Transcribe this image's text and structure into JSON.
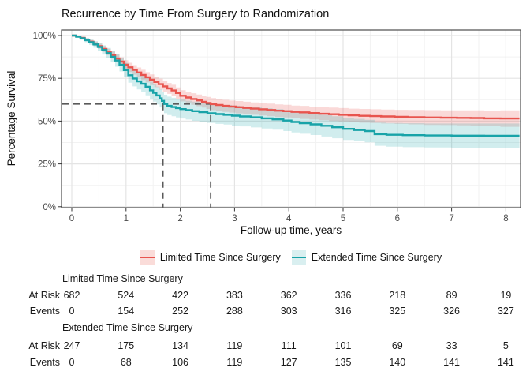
{
  "title": "Recurrence by Time From Surgery to Randomization",
  "axes": {
    "x": {
      "label": "Follow-up time, years",
      "ticks": [
        0,
        1,
        2,
        3,
        4,
        5,
        6,
        7,
        8
      ]
    },
    "y": {
      "label": "Percentage Survival",
      "ticks": [
        100,
        75,
        50,
        25,
        0
      ],
      "tick_suffix": "%"
    }
  },
  "colors": {
    "limited_line": "#E8544E",
    "limited_band": "rgba(232,84,78,0.22)",
    "limited_key_fill": "#FADCD9",
    "extended_line": "#18A3A8",
    "extended_band": "rgba(24,163,168,0.20)",
    "extended_key_fill": "#D9EFF0",
    "grid_major": "#e4e4e4",
    "grid_minor": "#f2f2f2",
    "panel_border": "#4d4d4d",
    "reference_dash": "#5a5a5a",
    "tick_text": "#4a4a4a"
  },
  "chart_data": {
    "type": "line",
    "subtype": "kaplan-meier-step-with-ci",
    "title": "Recurrence by Time From Surgery to Randomization",
    "xlabel": "Follow-up time, years",
    "ylabel": "Percentage Survival",
    "xlim": [
      -0.19,
      8.27
    ],
    "ylim": [
      0,
      100
    ],
    "x_ticks": [
      0,
      1,
      2,
      3,
      4,
      5,
      6,
      7,
      8
    ],
    "y_ticks_pct": [
      0,
      25,
      50,
      75,
      100
    ],
    "grid": true,
    "legend_position": "bottom",
    "reference_lines": {
      "horizontal_pct": 60,
      "vertical_years": [
        1.68,
        2.56
      ]
    },
    "series": [
      {
        "name": "Limited Time Since Surgery",
        "median_years": 2.56,
        "points_t_pct_ci": [
          [
            0,
            100,
            0.2
          ],
          [
            0.08,
            99.4,
            0.4
          ],
          [
            0.16,
            98.6,
            0.6
          ],
          [
            0.24,
            97.6,
            0.8
          ],
          [
            0.32,
            96.4,
            1.0
          ],
          [
            0.4,
            95.2,
            1.2
          ],
          [
            0.48,
            93.8,
            1.5
          ],
          [
            0.56,
            92.2,
            1.7
          ],
          [
            0.64,
            90.4,
            1.9
          ],
          [
            0.72,
            88.6,
            2.1
          ],
          [
            0.8,
            86.6,
            2.3
          ],
          [
            0.88,
            84.8,
            2.5
          ],
          [
            0.96,
            83.0,
            2.6
          ],
          [
            1.04,
            81.4,
            2.7
          ],
          [
            1.12,
            79.9,
            2.8
          ],
          [
            1.2,
            78.4,
            2.9
          ],
          [
            1.28,
            77.0,
            3.0
          ],
          [
            1.36,
            75.6,
            3.0
          ],
          [
            1.44,
            74.2,
            3.1
          ],
          [
            1.52,
            72.9,
            3.1
          ],
          [
            1.6,
            71.6,
            3.2
          ],
          [
            1.68,
            70.3,
            3.2
          ],
          [
            1.76,
            69.1,
            3.2
          ],
          [
            1.84,
            67.9,
            3.3
          ],
          [
            1.92,
            66.4,
            3.3
          ],
          [
            2.0,
            64.8,
            3.3
          ],
          [
            2.1,
            63.8,
            3.4
          ],
          [
            2.2,
            62.9,
            3.4
          ],
          [
            2.3,
            62.1,
            3.4
          ],
          [
            2.4,
            61.3,
            3.4
          ],
          [
            2.48,
            60.6,
            3.5
          ],
          [
            2.56,
            59.9,
            3.5
          ],
          [
            2.66,
            59.4,
            3.5
          ],
          [
            2.78,
            58.9,
            3.5
          ],
          [
            2.9,
            58.5,
            3.5
          ],
          [
            3.02,
            58.1,
            3.6
          ],
          [
            3.16,
            57.7,
            3.6
          ],
          [
            3.3,
            57.3,
            3.6
          ],
          [
            3.45,
            56.9,
            3.6
          ],
          [
            3.6,
            56.5,
            3.7
          ],
          [
            3.75,
            56.1,
            3.7
          ],
          [
            3.9,
            55.8,
            3.7
          ],
          [
            4.05,
            55.4,
            3.7
          ],
          [
            4.2,
            55.1,
            3.8
          ],
          [
            4.38,
            54.7,
            3.8
          ],
          [
            4.56,
            54.3,
            3.8
          ],
          [
            4.74,
            54.0,
            3.9
          ],
          [
            4.92,
            53.7,
            3.9
          ],
          [
            5.1,
            53.4,
            3.9
          ],
          [
            5.3,
            53.1,
            4.0
          ],
          [
            5.5,
            52.9,
            4.0
          ],
          [
            5.7,
            52.7,
            4.1
          ],
          [
            5.95,
            52.5,
            4.1
          ],
          [
            6.2,
            52.3,
            4.2
          ],
          [
            6.5,
            52.1,
            4.3
          ],
          [
            6.8,
            52.0,
            4.3
          ],
          [
            7.1,
            51.9,
            4.4
          ],
          [
            7.35,
            51.8,
            4.5
          ],
          [
            7.6,
            51.6,
            4.6
          ],
          [
            7.9,
            51.5,
            4.8
          ],
          [
            8.25,
            51.5,
            5.0
          ]
        ]
      },
      {
        "name": "Extended Time Since Surgery",
        "median_years": 1.68,
        "points_t_pct_ci": [
          [
            0,
            100,
            0.3
          ],
          [
            0.08,
            99.3,
            0.6
          ],
          [
            0.16,
            98.4,
            0.9
          ],
          [
            0.24,
            97.3,
            1.2
          ],
          [
            0.32,
            96.1,
            1.5
          ],
          [
            0.4,
            94.8,
            1.9
          ],
          [
            0.48,
            93.3,
            2.3
          ],
          [
            0.56,
            91.6,
            2.7
          ],
          [
            0.64,
            89.7,
            3.0
          ],
          [
            0.72,
            87.6,
            3.3
          ],
          [
            0.8,
            85.4,
            3.6
          ],
          [
            0.88,
            82.9,
            3.9
          ],
          [
            0.96,
            79.8,
            4.2
          ],
          [
            1.04,
            76.8,
            4.4
          ],
          [
            1.12,
            74.9,
            4.6
          ],
          [
            1.2,
            73.2,
            4.7
          ],
          [
            1.28,
            71.8,
            4.8
          ],
          [
            1.36,
            70.0,
            4.9
          ],
          [
            1.44,
            68.0,
            5.0
          ],
          [
            1.5,
            66.5,
            5.1
          ],
          [
            1.56,
            65.0,
            5.2
          ],
          [
            1.62,
            63.3,
            5.3
          ],
          [
            1.66,
            61.8,
            5.3
          ],
          [
            1.7,
            60.0,
            5.4
          ],
          [
            1.76,
            58.9,
            5.4
          ],
          [
            1.84,
            58.2,
            5.4
          ],
          [
            1.92,
            57.6,
            5.5
          ],
          [
            2.0,
            57.0,
            5.5
          ],
          [
            2.1,
            56.4,
            5.5
          ],
          [
            2.22,
            55.8,
            5.6
          ],
          [
            2.35,
            55.2,
            5.6
          ],
          [
            2.5,
            54.6,
            5.6
          ],
          [
            2.65,
            54.1,
            5.7
          ],
          [
            2.8,
            53.7,
            5.7
          ],
          [
            2.95,
            53.2,
            5.8
          ],
          [
            3.1,
            52.7,
            5.8
          ],
          [
            3.3,
            52.2,
            5.9
          ],
          [
            3.5,
            51.6,
            5.9
          ],
          [
            3.7,
            51.0,
            6.0
          ],
          [
            3.9,
            50.3,
            6.1
          ],
          [
            4.05,
            49.5,
            6.1
          ],
          [
            4.2,
            48.8,
            6.2
          ],
          [
            4.4,
            48.1,
            6.2
          ],
          [
            4.6,
            47.3,
            6.3
          ],
          [
            4.8,
            46.4,
            6.4
          ],
          [
            5.0,
            45.5,
            6.5
          ],
          [
            5.2,
            44.8,
            6.5
          ],
          [
            5.4,
            44.2,
            6.6
          ],
          [
            5.58,
            42.4,
            6.8
          ],
          [
            5.8,
            42.0,
            6.9
          ],
          [
            6.1,
            41.8,
            7.0
          ],
          [
            6.5,
            41.6,
            7.0
          ],
          [
            7.0,
            41.5,
            7.1
          ],
          [
            7.6,
            41.4,
            7.2
          ],
          [
            8.25,
            41.4,
            7.2
          ]
        ]
      }
    ]
  },
  "legend": {
    "items": [
      {
        "label": "Limited Time Since Surgery"
      },
      {
        "label": "Extended Time Since Surgery"
      }
    ]
  },
  "risk_table": {
    "time_points": [
      0,
      1,
      2,
      3,
      4,
      5,
      6,
      7,
      8
    ],
    "row_labels": {
      "at_risk": "At Risk",
      "events": "Events"
    },
    "groups": [
      {
        "name": "Limited Time Since Surgery",
        "at_risk": [
          682,
          524,
          422,
          383,
          362,
          336,
          218,
          89,
          19
        ],
        "events": [
          0,
          154,
          252,
          288,
          303,
          316,
          325,
          326,
          327
        ]
      },
      {
        "name": "Extended Time Since Surgery",
        "at_risk": [
          247,
          175,
          134,
          119,
          111,
          101,
          69,
          33,
          5
        ],
        "events": [
          0,
          68,
          106,
          119,
          127,
          135,
          140,
          141,
          141
        ]
      }
    ]
  }
}
